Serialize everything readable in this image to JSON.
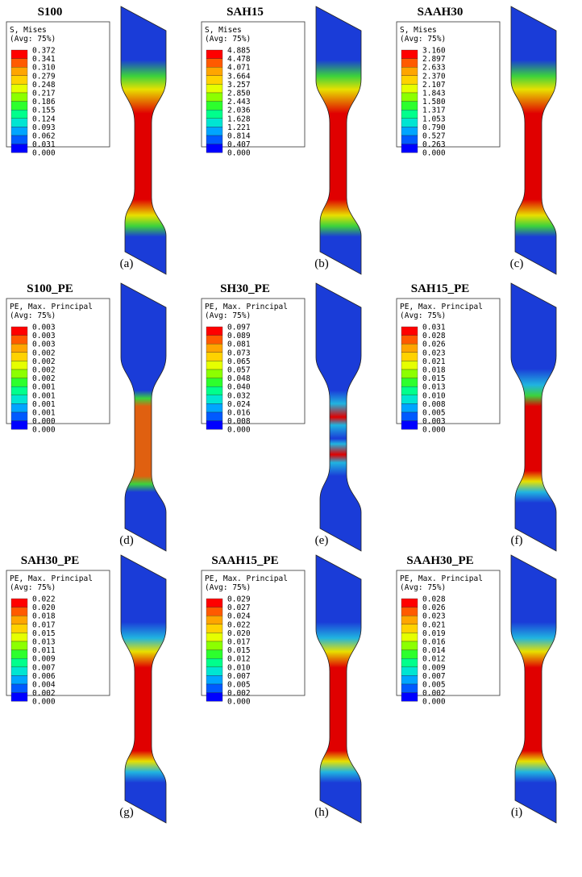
{
  "panels": [
    {
      "title": "S100",
      "legend_header": [
        "S, Mises",
        "(Avg: 75%)"
      ],
      "legend_values": [
        "0.372",
        "0.341",
        "0.310",
        "0.279",
        "0.248",
        "0.217",
        "0.186",
        "0.155",
        "0.124",
        "0.093",
        "0.062",
        "0.031",
        "0.000"
      ],
      "caption": "(a)"
    },
    {
      "title": "SAH15",
      "legend_header": [
        "S, Mises",
        "(Avg: 75%)"
      ],
      "legend_values": [
        "4.885",
        "4.478",
        "4.071",
        "3.664",
        "3.257",
        "2.850",
        "2.443",
        "2.036",
        "1.628",
        "1.221",
        "0.814",
        "0.407",
        "0.000"
      ],
      "caption": "(b)"
    },
    {
      "title": "SAAH30",
      "legend_header": [
        "S, Mises",
        "(Avg: 75%)"
      ],
      "legend_values": [
        "3.160",
        "2.897",
        "2.633",
        "2.370",
        "2.107",
        "1.843",
        "1.580",
        "1.317",
        "1.053",
        "0.790",
        "0.527",
        "0.263",
        "0.000"
      ],
      "caption": "(c)"
    },
    {
      "title": "S100_PE",
      "legend_header": [
        "PE, Max. Principal",
        "(Avg: 75%)"
      ],
      "legend_values": [
        "0.003",
        "0.003",
        "0.003",
        "0.002",
        "0.002",
        "0.002",
        "0.002",
        "0.001",
        "0.001",
        "0.001",
        "0.001",
        "0.000",
        "0.000"
      ],
      "caption": "(d)"
    },
    {
      "title": "SH30_PE",
      "legend_header": [
        "PE, Max. Principal",
        "(Avg: 75%)"
      ],
      "legend_values": [
        "0.097",
        "0.089",
        "0.081",
        "0.073",
        "0.065",
        "0.057",
        "0.048",
        "0.040",
        "0.032",
        "0.024",
        "0.016",
        "0.008",
        "0.000"
      ],
      "caption": "(e)"
    },
    {
      "title": "SAH15_PE",
      "legend_header": [
        "PE, Max. Principal",
        "(Avg: 75%)"
      ],
      "legend_values": [
        "0.031",
        "0.028",
        "0.026",
        "0.023",
        "0.021",
        "0.018",
        "0.015",
        "0.013",
        "0.010",
        "0.008",
        "0.005",
        "0.003",
        "0.000"
      ],
      "caption": "(f)"
    },
    {
      "title": "SAH30_PE",
      "legend_header": [
        "PE, Max. Principal",
        "(Avg: 75%)"
      ],
      "legend_values": [
        "0.022",
        "0.020",
        "0.018",
        "0.017",
        "0.015",
        "0.013",
        "0.011",
        "0.009",
        "0.007",
        "0.006",
        "0.004",
        "0.002",
        "0.000"
      ],
      "caption": "(g)"
    },
    {
      "title": "SAAH15_PE",
      "legend_header": [
        "PE, Max. Principal",
        "(Avg: 75%)"
      ],
      "legend_values": [
        "0.029",
        "0.027",
        "0.024",
        "0.022",
        "0.020",
        "0.017",
        "0.015",
        "0.012",
        "0.010",
        "0.007",
        "0.005",
        "0.002",
        "0.000"
      ],
      "caption": "(h)"
    },
    {
      "title": "SAAH30_PE",
      "legend_header": [
        "PE, Max. Principal",
        "(Avg: 75%)"
      ],
      "legend_values": [
        "0.028",
        "0.026",
        "0.023",
        "0.021",
        "0.019",
        "0.016",
        "0.014",
        "0.012",
        "0.009",
        "0.007",
        "0.005",
        "0.002",
        "0.000"
      ],
      "caption": "(i)"
    }
  ]
}
